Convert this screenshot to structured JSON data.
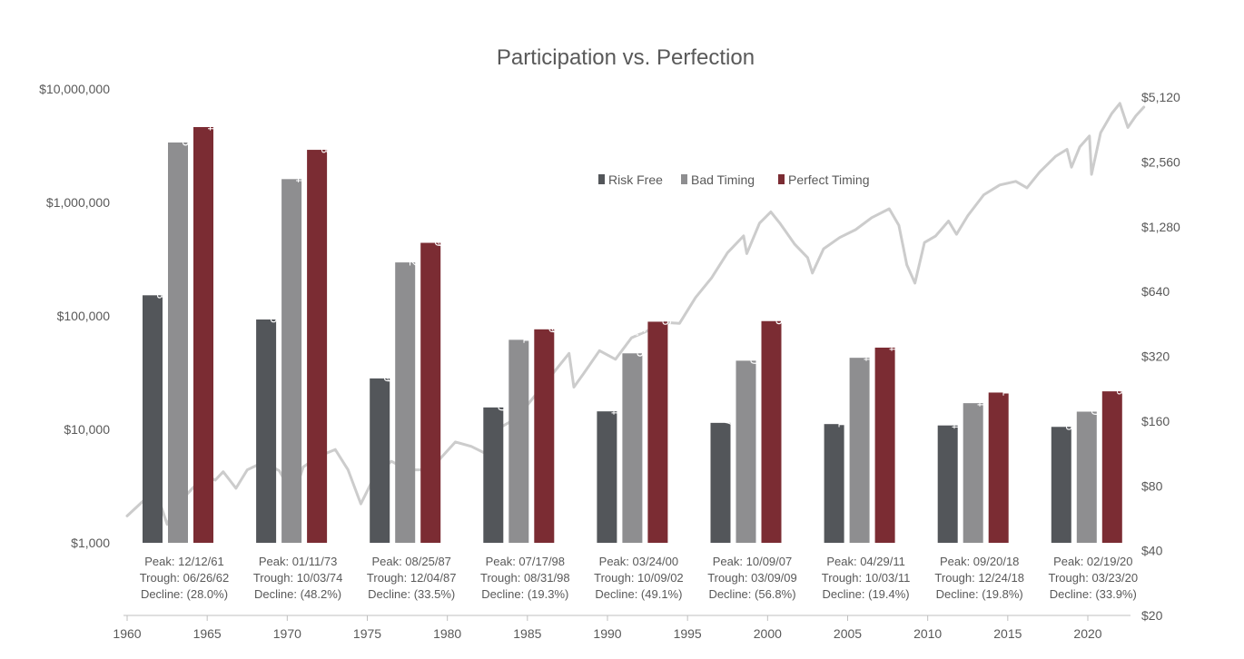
{
  "chart_data": {
    "type": "bar",
    "title": "Participation vs. Perfection",
    "y_scale": "log",
    "ylim": [
      1000,
      10000000
    ],
    "y_ticks": [
      "$1,000",
      "$10,000",
      "$100,000",
      "$1,000,000",
      "$10,000,000"
    ],
    "y2_scale": "log",
    "y2lim": [
      20,
      5120
    ],
    "y2_ticks": [
      "$20",
      "$40",
      "$80",
      "$160",
      "$320",
      "$640",
      "$1,280",
      "$2,560",
      "$5,120"
    ],
    "x_ticks": [
      "1960",
      "1965",
      "1970",
      "1975",
      "1980",
      "1985",
      "1990",
      "1995",
      "2000",
      "2005",
      "2010",
      "2015",
      "2020"
    ],
    "legend_position": "top-center",
    "grid": false,
    "categories": [
      {
        "peak": "Peak: 12/12/61",
        "trough": "Trough: 06/26/62",
        "decline": "Decline: (28.0%)"
      },
      {
        "peak": "Peak: 01/11/73",
        "trough": "Trough: 10/03/74",
        "decline": "Decline: (48.2%)"
      },
      {
        "peak": "Peak: 08/25/87",
        "trough": "Trough: 12/04/87",
        "decline": "Decline: (33.5%)"
      },
      {
        "peak": "Peak: 07/17/98",
        "trough": "Trough: 08/31/98",
        "decline": "Decline: (19.3%)"
      },
      {
        "peak": "Peak: 03/24/00",
        "trough": "Trough: 10/09/02",
        "decline": "Decline: (49.1%)"
      },
      {
        "peak": "Peak: 10/09/07",
        "trough": "Trough: 03/09/09",
        "decline": "Decline: (56.8%)"
      },
      {
        "peak": "Peak: 04/29/11",
        "trough": "Trough: 10/03/11",
        "decline": "Decline: (19.4%)"
      },
      {
        "peak": "Peak: 09/20/18",
        "trough": "Trough: 12/24/18",
        "decline": "Decline: (19.8%)"
      },
      {
        "peak": "Peak: 02/19/20",
        "trough": "Trough: 03/23/20",
        "decline": "Decline: (33.9%)"
      }
    ],
    "series": [
      {
        "name": "Risk Free",
        "color": "#53565a",
        "values": [
          151883,
          92966,
          28109,
          15600,
          14404,
          11407,
          11131,
          10824,
          10516
        ],
        "labels": [
          "$151,883",
          "$92,966",
          "$28,109",
          "$15,600",
          "$14,404",
          "$11,407",
          "$11,131",
          "$10,824",
          "$10,516"
        ]
      },
      {
        "name": "Bad Timing",
        "color": "#8e8e90",
        "values": [
          3373545,
          1604884,
          295972,
          61531,
          46755,
          40280,
          42724,
          17014,
          14320
        ],
        "labels": [
          "$3,373,545",
          "$1,604,884",
          "$295,972",
          "$61,531",
          "$46,755",
          "$40,280",
          "$42,724",
          "$17,014",
          "$14,320"
        ]
      },
      {
        "name": "Perfect Timing",
        "color": "#7b2c33",
        "values": [
          4613574,
          2907648,
          440409,
          76119,
          88846,
          89945,
          52514,
          21101,
          21628
        ],
        "labels": [
          "$4,613,574",
          "$2,907,648",
          "$440,409",
          "$76,119",
          "$88,846",
          "$89,945",
          "$52,514",
          "$21,101",
          "$21,628"
        ]
      }
    ],
    "index_line": {
      "color": "#cccccc",
      "axis": "right",
      "points": [
        [
          1960.0,
          58
        ],
        [
          1961.0,
          68
        ],
        [
          1961.9,
          72
        ],
        [
          1962.5,
          53
        ],
        [
          1963.0,
          63
        ],
        [
          1963.8,
          74
        ],
        [
          1964.5,
          84
        ],
        [
          1965.0,
          89
        ],
        [
          1965.5,
          85
        ],
        [
          1966.0,
          93
        ],
        [
          1966.8,
          78
        ],
        [
          1967.5,
          95
        ],
        [
          1968.5,
          103
        ],
        [
          1969.5,
          94
        ],
        [
          1970.4,
          72
        ],
        [
          1971.0,
          98
        ],
        [
          1972.0,
          110
        ],
        [
          1973.0,
          118
        ],
        [
          1973.8,
          95
        ],
        [
          1974.6,
          66
        ],
        [
          1975.5,
          90
        ],
        [
          1976.5,
          104
        ],
        [
          1977.5,
          95
        ],
        [
          1978.5,
          95
        ],
        [
          1979.5,
          106
        ],
        [
          1980.5,
          128
        ],
        [
          1981.5,
          122
        ],
        [
          1982.5,
          112
        ],
        [
          1983.0,
          145
        ],
        [
          1984.0,
          160
        ],
        [
          1985.0,
          190
        ],
        [
          1986.0,
          235
        ],
        [
          1987.6,
          330
        ],
        [
          1987.9,
          230
        ],
        [
          1988.5,
          265
        ],
        [
          1989.5,
          340
        ],
        [
          1990.5,
          310
        ],
        [
          1991.5,
          390
        ],
        [
          1992.5,
          420
        ],
        [
          1993.5,
          460
        ],
        [
          1994.5,
          455
        ],
        [
          1995.5,
          600
        ],
        [
          1996.5,
          740
        ],
        [
          1997.5,
          970
        ],
        [
          1998.5,
          1160
        ],
        [
          1998.7,
          960
        ],
        [
          1999.5,
          1330
        ],
        [
          2000.2,
          1500
        ],
        [
          2000.8,
          1320
        ],
        [
          2001.7,
          1060
        ],
        [
          2002.5,
          920
        ],
        [
          2002.8,
          780
        ],
        [
          2003.5,
          1010
        ],
        [
          2004.5,
          1140
        ],
        [
          2005.5,
          1240
        ],
        [
          2006.5,
          1410
        ],
        [
          2007.6,
          1550
        ],
        [
          2008.2,
          1300
        ],
        [
          2008.7,
          850
        ],
        [
          2009.2,
          700
        ],
        [
          2009.8,
          1080
        ],
        [
          2010.5,
          1160
        ],
        [
          2011.3,
          1360
        ],
        [
          2011.8,
          1180
        ],
        [
          2012.5,
          1440
        ],
        [
          2013.5,
          1800
        ],
        [
          2014.5,
          2000
        ],
        [
          2015.5,
          2080
        ],
        [
          2016.2,
          1940
        ],
        [
          2017.0,
          2300
        ],
        [
          2018.0,
          2720
        ],
        [
          2018.7,
          2930
        ],
        [
          2018.98,
          2420
        ],
        [
          2019.5,
          3010
        ],
        [
          2020.1,
          3380
        ],
        [
          2020.23,
          2240
        ],
        [
          2020.8,
          3500
        ],
        [
          2021.5,
          4300
        ],
        [
          2022.0,
          4790
        ],
        [
          2022.5,
          3700
        ],
        [
          2023.0,
          4190
        ],
        [
          2023.5,
          4600
        ]
      ]
    }
  }
}
